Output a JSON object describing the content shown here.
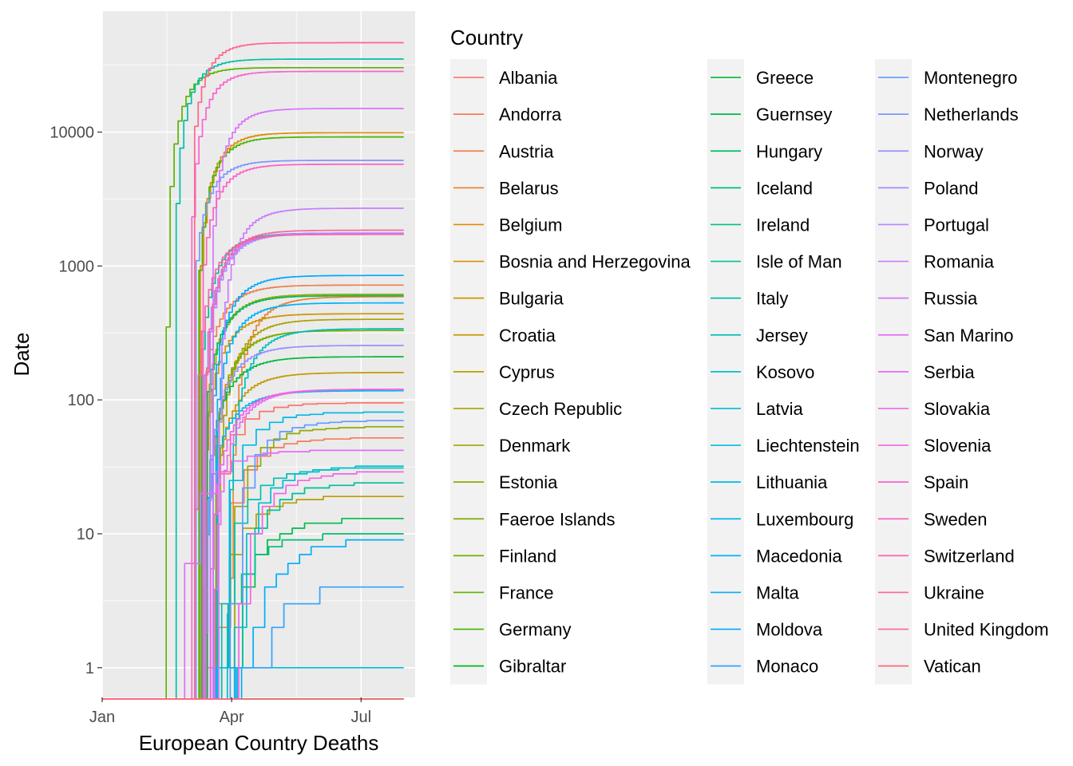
{
  "chart_data": {
    "type": "line",
    "xlabel": "European Country Deaths",
    "ylabel": "Date",
    "x_scale": "date",
    "y_scale": "log10",
    "xlim": [
      "2020-01-01",
      "2020-08-08"
    ],
    "ylim": [
      0.6,
      80000
    ],
    "x_ticks": [
      {
        "label": "Jan",
        "value": "2020-01-01"
      },
      {
        "label": "Apr",
        "value": "2020-04-01"
      },
      {
        "label": "Jul",
        "value": "2020-07-01"
      }
    ],
    "y_ticks": [
      {
        "label": "1",
        "value": 1
      },
      {
        "label": "10",
        "value": 10
      },
      {
        "label": "100",
        "value": 100
      },
      {
        "label": "1000",
        "value": 1000
      },
      {
        "label": "10000",
        "value": 10000
      }
    ],
    "grid": true,
    "panel_background": "#ebebeb",
    "legend": {
      "title": "Country",
      "position": "right",
      "columns": 3
    },
    "series": [
      {
        "name": "Albania",
        "color": "#F8766D",
        "start": "2020-03-11",
        "final": 95
      },
      {
        "name": "Andorra",
        "color": "#F47B5C",
        "start": "2020-03-22",
        "final": 52
      },
      {
        "name": "Austria",
        "color": "#EF7F4A",
        "start": "2020-03-12",
        "final": 720
      },
      {
        "name": "Belarus",
        "color": "#E88534",
        "start": "2020-03-31",
        "final": 590
      },
      {
        "name": "Belgium",
        "color": "#E18A00",
        "start": "2020-03-10",
        "final": 9900
      },
      {
        "name": "Bosnia and Herzegovina",
        "color": "#D89000",
        "start": "2020-03-21",
        "final": 330
      },
      {
        "name": "Bulgaria",
        "color": "#CF9400",
        "start": "2020-03-11",
        "final": 440
      },
      {
        "name": "Croatia",
        "color": "#C49A00",
        "start": "2020-03-19",
        "final": 160
      },
      {
        "name": "Cyprus",
        "color": "#B99E00",
        "start": "2020-03-21",
        "final": 19
      },
      {
        "name": "Czech Republic",
        "color": "#ADA200",
        "start": "2020-03-22",
        "final": 400
      },
      {
        "name": "Denmark",
        "color": "#A0A600",
        "start": "2020-03-14",
        "final": 615
      },
      {
        "name": "Estonia",
        "color": "#93AA00",
        "start": "2020-03-25",
        "final": 63
      },
      {
        "name": "Faeroe Islands",
        "color": "#83AD00",
        "start": "2020-01-01",
        "final": 0
      },
      {
        "name": "Finland",
        "color": "#72B000",
        "start": "2020-03-21",
        "final": 330
      },
      {
        "name": "France",
        "color": "#5EB300",
        "start": "2020-02-15",
        "final": 30300
      },
      {
        "name": "Germany",
        "color": "#44B600",
        "start": "2020-03-09",
        "final": 9200
      },
      {
        "name": "Gibraltar",
        "color": "#00B81F",
        "start": "2020-01-01",
        "final": 0
      },
      {
        "name": "Greece",
        "color": "#00BA38",
        "start": "2020-03-12",
        "final": 210
      },
      {
        "name": "Guernsey",
        "color": "#00BB4E",
        "start": "2020-03-31",
        "final": 13
      },
      {
        "name": "Hungary",
        "color": "#00BC62",
        "start": "2020-03-15",
        "final": 600
      },
      {
        "name": "Iceland",
        "color": "#00BD74",
        "start": "2020-03-20",
        "final": 10
      },
      {
        "name": "Ireland",
        "color": "#00BE86",
        "start": "2020-03-11",
        "final": 1760
      },
      {
        "name": "Isle of Man",
        "color": "#00BF96",
        "start": "2020-03-31",
        "final": 24
      },
      {
        "name": "Italy",
        "color": "#00C0A6",
        "start": "2020-02-22",
        "final": 35100
      },
      {
        "name": "Jersey",
        "color": "#00C0B5",
        "start": "2020-03-25",
        "final": 31
      },
      {
        "name": "Kosovo",
        "color": "#00BFC3",
        "start": "2020-03-29",
        "final": 340
      },
      {
        "name": "Latvia",
        "color": "#00BED0",
        "start": "2020-04-03",
        "final": 32
      },
      {
        "name": "Liechtenstein",
        "color": "#00BCDC",
        "start": "2020-04-05",
        "final": 1
      },
      {
        "name": "Lithuania",
        "color": "#00BAE7",
        "start": "2020-03-21",
        "final": 81
      },
      {
        "name": "Luxembourg",
        "color": "#00B7F1",
        "start": "2020-03-14",
        "final": 117
      },
      {
        "name": "Macedonia",
        "color": "#00B3FA",
        "start": "2020-03-22",
        "final": 530
      },
      {
        "name": "Malta",
        "color": "#00AEFA",
        "start": "2020-04-08",
        "final": 9
      },
      {
        "name": "Moldova",
        "color": "#00A9FF",
        "start": "2020-03-19",
        "final": 850
      },
      {
        "name": "Monaco",
        "color": "#35A2FF",
        "start": "2020-04-04",
        "final": 4
      },
      {
        "name": "Montenegro",
        "color": "#619CFF",
        "start": "2020-03-31",
        "final": 70
      },
      {
        "name": "Netherlands",
        "color": "#7C96FF",
        "start": "2020-03-07",
        "final": 6150
      },
      {
        "name": "Norway",
        "color": "#9590FF",
        "start": "2020-03-13",
        "final": 255
      },
      {
        "name": "Poland",
        "color": "#A989FF",
        "start": "2020-03-13",
        "final": 1760
      },
      {
        "name": "Portugal",
        "color": "#BA83FF",
        "start": "2020-03-17",
        "final": 1740
      },
      {
        "name": "Romania",
        "color": "#C97CFF",
        "start": "2020-03-23",
        "final": 2700
      },
      {
        "name": "Russia",
        "color": "#D774FD",
        "start": "2020-03-19",
        "final": 15000
      },
      {
        "name": "San Marino",
        "color": "#E26EF7",
        "start": "2020-02-28",
        "final": 42
      },
      {
        "name": "Serbia",
        "color": "#EA6AF0",
        "start": "2020-03-20",
        "final": 120
      },
      {
        "name": "Slovakia",
        "color": "#F166E8",
        "start": "2020-04-06",
        "final": 29
      },
      {
        "name": "Slovenia",
        "color": "#F564E3",
        "start": "2020-03-15",
        "final": 120
      },
      {
        "name": "Spain",
        "color": "#FA62D3",
        "start": "2020-03-04",
        "final": 28400
      },
      {
        "name": "Sweden",
        "color": "#FD61C3",
        "start": "2020-03-12",
        "final": 5750
      },
      {
        "name": "Switzerland",
        "color": "#FF61B2",
        "start": "2020-03-06",
        "final": 1720
      },
      {
        "name": "Ukraine",
        "color": "#FF63A0",
        "start": "2020-03-14",
        "final": 1850
      },
      {
        "name": "United Kingdom",
        "color": "#FF658E",
        "start": "2020-03-06",
        "final": 46500
      },
      {
        "name": "Vatican",
        "color": "#FC6A7B",
        "start": "2020-01-01",
        "final": 0
      }
    ]
  }
}
